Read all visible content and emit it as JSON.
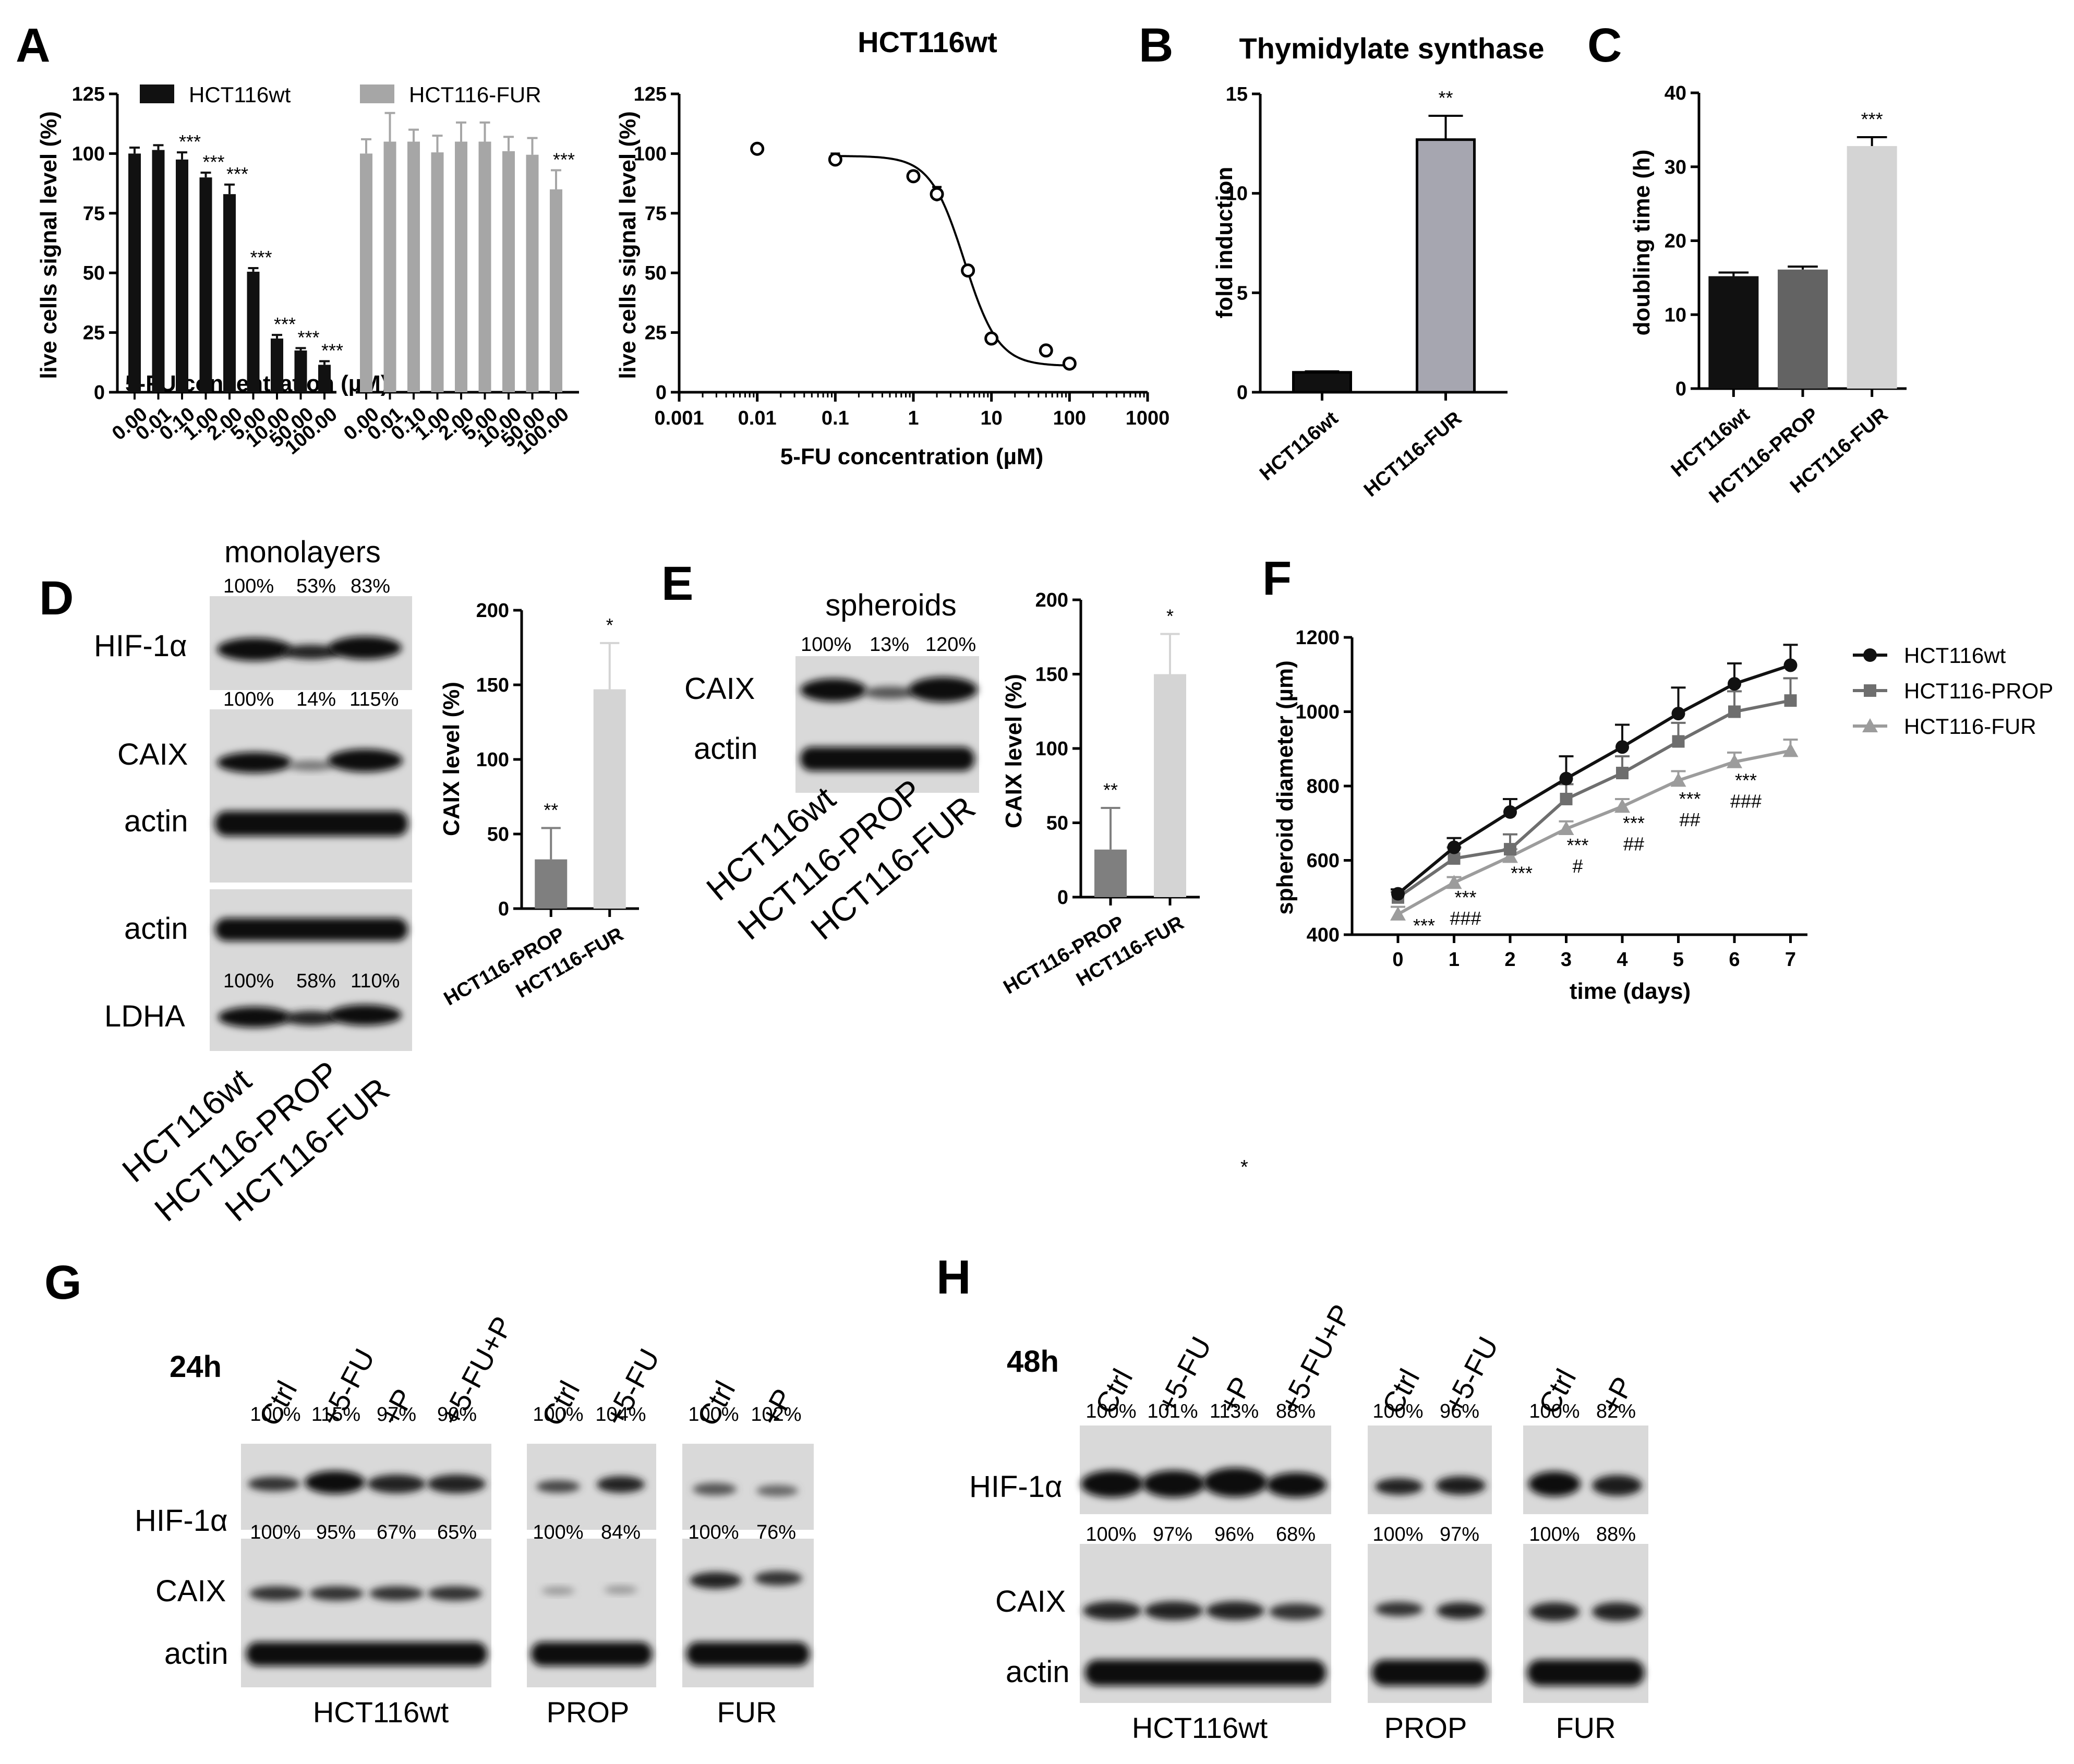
{
  "panel_letters": [
    "A",
    "B",
    "C",
    "D",
    "E",
    "F",
    "G",
    "H"
  ],
  "stray_dot": "*",
  "chart_data": [
    {
      "id": "A_bar",
      "type": "bar",
      "ylabel": "live cells signal level (%)",
      "xlabel": "5-FU concentration (µM)",
      "ylim": [
        0,
        125
      ],
      "yticks": [
        0,
        25,
        50,
        75,
        100,
        125
      ],
      "categories": [
        "0.00",
        "0.01",
        "0.10",
        "1.00",
        "2.00",
        "5.00",
        "10.00",
        "50.00",
        "100.00"
      ],
      "legend": "top",
      "series": [
        {
          "name": "HCT116wt",
          "color": "#111111",
          "values": [
            100,
            101.5,
            97.5,
            90,
            83,
            50.5,
            22.5,
            17.5,
            11.5
          ],
          "errors": [
            2.5,
            2,
            3,
            2,
            4,
            1.5,
            1.5,
            1,
            1.5
          ],
          "sig": [
            "",
            "",
            "***",
            "***",
            "***",
            "***",
            "***",
            "***",
            "***"
          ]
        },
        {
          "name": "HCT116-FUR",
          "color": "#a6a6a6",
          "values": [
            100,
            105,
            105,
            100.5,
            105,
            105,
            101,
            99.5,
            85
          ],
          "errors": [
            6,
            12,
            5,
            7,
            8,
            8,
            6,
            7,
            8
          ],
          "sig": [
            "",
            "",
            "",
            "",
            "",
            "",
            "",
            "",
            "***"
          ]
        }
      ]
    },
    {
      "id": "A_curve",
      "type": "scatter",
      "title": "HCT116wt",
      "ylabel": "live cells signal level (%)",
      "xlabel": "5-FU concentration (µM)",
      "xscale": "log",
      "xlim": [
        0.001,
        1000
      ],
      "ylim": [
        0,
        125
      ],
      "xticks": [
        "0.001",
        "0.01",
        "0.1",
        "1",
        "10",
        "100",
        "1000"
      ],
      "yticks": [
        0,
        25,
        50,
        75,
        100,
        125
      ],
      "points": [
        {
          "x": 0.01,
          "y": 102,
          "err": 0
        },
        {
          "x": 0.1,
          "y": 97.5,
          "err": 2.5
        },
        {
          "x": 1,
          "y": 90.5,
          "err": 2
        },
        {
          "x": 2,
          "y": 83,
          "err": 3
        },
        {
          "x": 5,
          "y": 51,
          "err": 1
        },
        {
          "x": 10,
          "y": 22.5,
          "err": 1
        },
        {
          "x": 50,
          "y": 17.5,
          "err": 1
        },
        {
          "x": 100,
          "y": 12,
          "err": 1
        }
      ],
      "fit": {
        "top": 99,
        "bottom": 11,
        "ic50": 4.5,
        "hill": 2
      }
    },
    {
      "id": "B",
      "type": "bar",
      "title": "Thymidylate synthase",
      "ylabel": "fold induction",
      "ylim": [
        0,
        15
      ],
      "yticks": [
        0,
        5,
        10,
        15
      ],
      "categories": [
        "HCT116wt",
        "HCT116-FUR"
      ],
      "values": [
        1,
        12.7
      ],
      "errors": [
        0.05,
        1.2
      ],
      "colors": [
        "#111111",
        "#a6a6b0"
      ],
      "sig": [
        "",
        "**"
      ]
    },
    {
      "id": "C",
      "type": "bar",
      "ylabel": "doubling time (h)",
      "ylim": [
        0,
        40
      ],
      "yticks": [
        0,
        10,
        20,
        30,
        40
      ],
      "categories": [
        "HCT116wt",
        "HCT116-PROP",
        "HCT116-FUR"
      ],
      "values": [
        15.2,
        16.1,
        32.8
      ],
      "errors": [
        0.5,
        0.4,
        1.2
      ],
      "colors": [
        "#111111",
        "#636363",
        "#d4d4d4"
      ],
      "sig": [
        "",
        "",
        "***"
      ]
    },
    {
      "id": "D_bar",
      "type": "bar",
      "ylabel": "CAIX level (%)",
      "ylim": [
        0,
        200
      ],
      "yticks": [
        0,
        50,
        100,
        150,
        200
      ],
      "categories": [
        "HCT116-PROP",
        "HCT116-FUR"
      ],
      "values": [
        33,
        147
      ],
      "errors": [
        21,
        31
      ],
      "colors": [
        "#7f7f7f",
        "#d4d4d4"
      ],
      "sig": [
        "**",
        "*"
      ]
    },
    {
      "id": "E_bar",
      "type": "bar",
      "ylabel": "CAIX level (%)",
      "ylim": [
        0,
        200
      ],
      "yticks": [
        0,
        50,
        100,
        150,
        200
      ],
      "categories": [
        "HCT116-PROP",
        "HCT116-FUR"
      ],
      "values": [
        32,
        150
      ],
      "errors": [
        28,
        27
      ],
      "colors": [
        "#7f7f7f",
        "#d4d4d4"
      ],
      "sig": [
        "**",
        "*"
      ]
    },
    {
      "id": "F",
      "type": "line",
      "ylabel": "spheroid diameter (µm)",
      "xlabel": "time (days)",
      "xlim": [
        0,
        7
      ],
      "ylim": [
        400,
        1200
      ],
      "xticks": [
        0,
        1,
        2,
        3,
        4,
        5,
        6,
        7
      ],
      "yticks": [
        400,
        600,
        800,
        1000,
        1200
      ],
      "legend": "right",
      "series": [
        {
          "name": "HCT116wt",
          "color": "#111111",
          "marker": "circle",
          "values": [
            510,
            635,
            730,
            820,
            905,
            995,
            1075,
            1125
          ],
          "errors": [
            12,
            25,
            35,
            60,
            60,
            70,
            55,
            55
          ]
        },
        {
          "name": "HCT116-PROP",
          "color": "#6e6e6e",
          "marker": "square",
          "values": [
            500,
            605,
            630,
            765,
            835,
            920,
            1000,
            1030
          ],
          "errors": [
            15,
            30,
            40,
            40,
            45,
            50,
            55,
            60
          ]
        },
        {
          "name": "HCT116-FUR",
          "color": "#9c9c9c",
          "marker": "triangle",
          "values": [
            455,
            540,
            610,
            685,
            745,
            815,
            865,
            895
          ],
          "errors": [
            20,
            15,
            20,
            20,
            20,
            25,
            25,
            30
          ]
        }
      ],
      "annotations": [
        {
          "x": 0,
          "lines": [
            "***"
          ]
        },
        {
          "x": 1,
          "lines": [
            "***",
            "###"
          ]
        },
        {
          "x": 2,
          "lines": [
            "***"
          ]
        },
        {
          "x": 3,
          "lines": [
            "***",
            "#"
          ]
        },
        {
          "x": 4,
          "lines": [
            "***",
            "##"
          ]
        },
        {
          "x": 5,
          "lines": [
            "***",
            "##"
          ]
        },
        {
          "x": 6,
          "lines": [
            "***",
            "###"
          ]
        }
      ]
    }
  ],
  "blots": {
    "D": {
      "header": "monolayers",
      "rows": [
        {
          "label": "HIF-1α",
          "pcts": [
            "100%",
            "53%",
            "83%"
          ]
        },
        {
          "label": "CAIX",
          "pcts": [
            "100%",
            "14%",
            "115%"
          ]
        },
        {
          "label": "actin",
          "pcts": []
        },
        {
          "label": "actin",
          "pcts": []
        },
        {
          "label": "LDHA",
          "pcts": [
            "100%",
            "58%",
            "110%"
          ]
        }
      ],
      "samples": [
        "HCT116wt",
        "HCT116-PROP",
        "HCT116-FUR"
      ]
    },
    "E": {
      "header": "spheroids",
      "rows": [
        {
          "label": "CAIX",
          "pcts": [
            "100%",
            "13%",
            "120%"
          ]
        },
        {
          "label": "actin",
          "pcts": []
        }
      ],
      "samples": [
        "HCT116wt",
        "HCT116-PROP",
        "HCT116-FUR"
      ]
    },
    "G": {
      "time": "24h",
      "row_labels": [
        "HIF-1α",
        "CAIX",
        "actin"
      ],
      "groups": [
        {
          "name": "HCT116wt",
          "lanes": [
            "Ctrl",
            "+5-FU",
            "+P",
            "+5-FU+P"
          ],
          "hif": [
            "100%",
            "115%",
            "97%",
            "90%"
          ],
          "caix": [
            "100%",
            "95%",
            "67%",
            "65%"
          ]
        },
        {
          "name": "PROP",
          "lanes": [
            "Ctrl",
            "+5-FU"
          ],
          "hif": [
            "100%",
            "104%"
          ],
          "caix": [
            "100%",
            "84%"
          ]
        },
        {
          "name": "FUR",
          "lanes": [
            "Ctrl",
            "+P"
          ],
          "hif": [
            "100%",
            "102%"
          ],
          "caix": [
            "100%",
            "76%"
          ]
        }
      ]
    },
    "H": {
      "time": "48h",
      "row_labels": [
        "HIF-1α",
        "CAIX",
        "actin"
      ],
      "groups": [
        {
          "name": "HCT116wt",
          "lanes": [
            "Ctrl",
            "+5-FU",
            "+P",
            "+5-FU+P"
          ],
          "hif": [
            "100%",
            "101%",
            "113%",
            "88%"
          ],
          "caix": [
            "100%",
            "97%",
            "96%",
            "68%"
          ]
        },
        {
          "name": "PROP",
          "lanes": [
            "Ctrl",
            "+5-FU"
          ],
          "hif": [
            "100%",
            "96%"
          ],
          "caix": [
            "100%",
            "97%"
          ]
        },
        {
          "name": "FUR",
          "lanes": [
            "Ctrl",
            "+P"
          ],
          "hif": [
            "100%",
            "82%"
          ],
          "caix": [
            "100%",
            "88%"
          ]
        }
      ]
    }
  }
}
